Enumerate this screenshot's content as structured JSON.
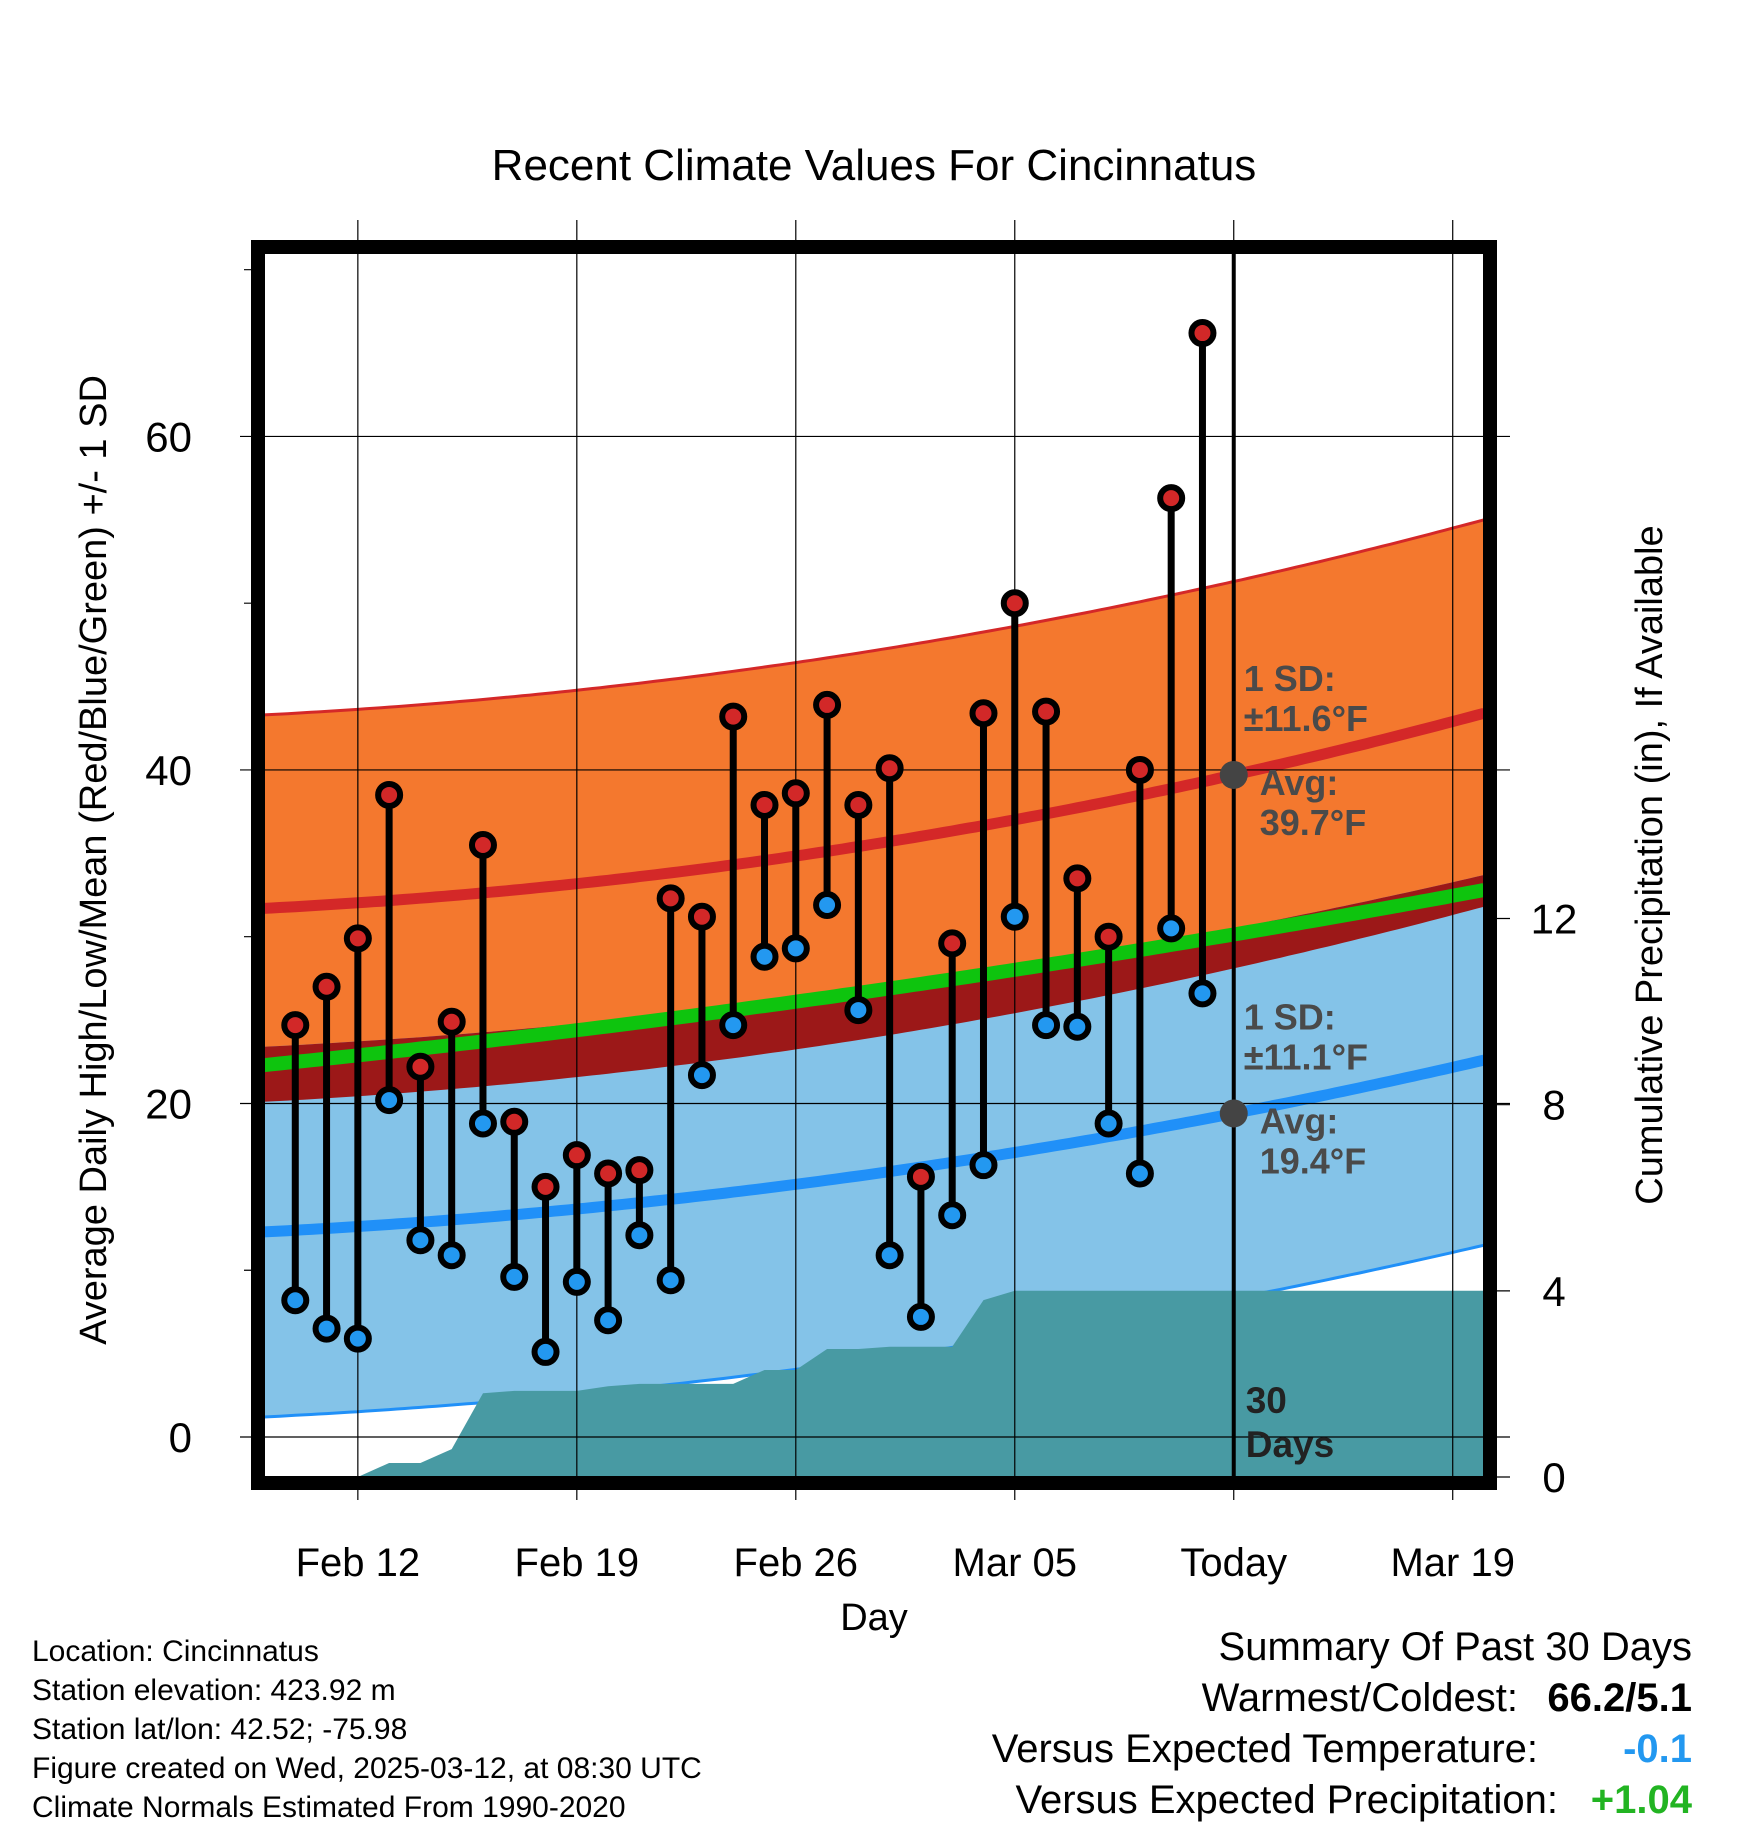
{
  "chart_data": {
    "type": "line",
    "title": "Recent Climate Values For Cincinnatus",
    "xlabel": "Day",
    "ylabel": "Average Daily High/Low/Mean (Red/Blue/Green) +/- 1 SD",
    "y2label": "Cumulative Precipitation (in), If Available",
    "x_ticks": [
      "Feb 12",
      "Feb 19",
      "Feb 26",
      "Mar 05",
      "Today",
      "Mar 19"
    ],
    "x_tick_days": [
      5,
      12,
      19,
      26,
      33,
      40
    ],
    "xlim": [
      2,
      41
    ],
    "ylim": [
      -2.4,
      71
    ],
    "y_ticks": [
      0,
      20,
      40,
      60
    ],
    "y2lim": [
      0,
      26.3
    ],
    "y2_ticks": [
      0,
      4,
      8,
      12
    ],
    "today_day": 33,
    "today_label": "30\nDays",
    "highs": [
      24.7,
      27.0,
      29.9,
      38.5,
      22.2,
      24.9,
      35.5,
      18.9,
      15.0,
      16.9,
      15.8,
      16.0,
      32.3,
      31.2,
      43.2,
      37.9,
      38.6,
      43.9,
      37.9,
      40.1,
      15.6,
      29.6,
      43.4,
      50.0,
      43.5,
      33.5,
      30.0,
      40.0,
      56.3,
      66.2
    ],
    "lows": [
      8.2,
      6.5,
      5.9,
      20.2,
      11.8,
      10.9,
      18.8,
      9.6,
      5.1,
      9.3,
      7.0,
      12.1,
      9.4,
      21.7,
      24.7,
      28.8,
      29.3,
      31.9,
      25.6,
      10.9,
      7.2,
      13.3,
      16.3,
      31.2,
      24.7,
      24.6,
      18.8,
      15.8,
      30.5,
      26.6
    ],
    "normal_high": {
      "start": 31.7,
      "today": 39.7,
      "end": 43.4
    },
    "normal_high_sd": 11.6,
    "normal_low": {
      "start": 12.3,
      "today": 19.4,
      "end": 22.6
    },
    "normal_low_sd": 11.1,
    "normal_mean": {
      "start": 22.3,
      "end": 32.8
    },
    "precip_cumulative": [
      [
        5,
        0.0
      ],
      [
        6,
        0.3
      ],
      [
        7,
        0.3
      ],
      [
        8,
        0.6
      ],
      [
        9,
        1.8
      ],
      [
        10,
        1.85
      ],
      [
        11,
        1.85
      ],
      [
        12,
        1.85
      ],
      [
        13,
        1.95
      ],
      [
        14,
        2.0
      ],
      [
        15,
        2.0
      ],
      [
        16,
        2.0
      ],
      [
        17,
        2.0
      ],
      [
        18,
        2.3
      ],
      [
        19,
        2.3
      ],
      [
        20,
        2.75
      ],
      [
        21,
        2.75
      ],
      [
        22,
        2.8
      ],
      [
        23,
        2.8
      ],
      [
        24,
        2.8
      ],
      [
        25,
        3.8
      ],
      [
        26,
        4.0
      ],
      [
        41,
        4.0
      ]
    ],
    "high_label": {
      "sd": "1 SD:",
      "sd_value": "±11.6°F",
      "avg": "Avg:",
      "avg_value": "39.7°F"
    },
    "low_label": {
      "sd": "1 SD:",
      "sd_value": "±11.1°F",
      "avg": "Avg:",
      "avg_value": "19.4°F"
    },
    "grid": true,
    "colors": {
      "high_band": "#f4782e",
      "high_line": "#d42828",
      "low_band": "#84c3e8",
      "low_line": "#2090f8",
      "mean_line": "#0ec40e",
      "overlap": "#9c1818",
      "precip": "#489aa3",
      "marker_high": "#d22828",
      "marker_low": "#2398f0",
      "avg_dot": "#444444",
      "label_text": "#4a4a4a"
    }
  },
  "footer": {
    "location": "Location: Cincinnatus",
    "elevation": "Station elevation: 423.92 m",
    "latlon": "Station lat/lon: 42.52; -75.98",
    "created": "Figure created on Wed, 2025-03-12, at 08:30 UTC",
    "normals": "Climate Normals Estimated From 1990-2020"
  },
  "summary": {
    "title": "Summary Of Past 30 Days",
    "warm_label": "Warmest/Coldest:",
    "warm_value": "66.2/5.1",
    "temp_label": "Versus Expected Temperature:",
    "temp_value": "-0.1",
    "temp_color": "#2398f0",
    "prec_label": "Versus Expected Precipitation:",
    "prec_value": "+1.04",
    "prec_color": "#22b422"
  }
}
